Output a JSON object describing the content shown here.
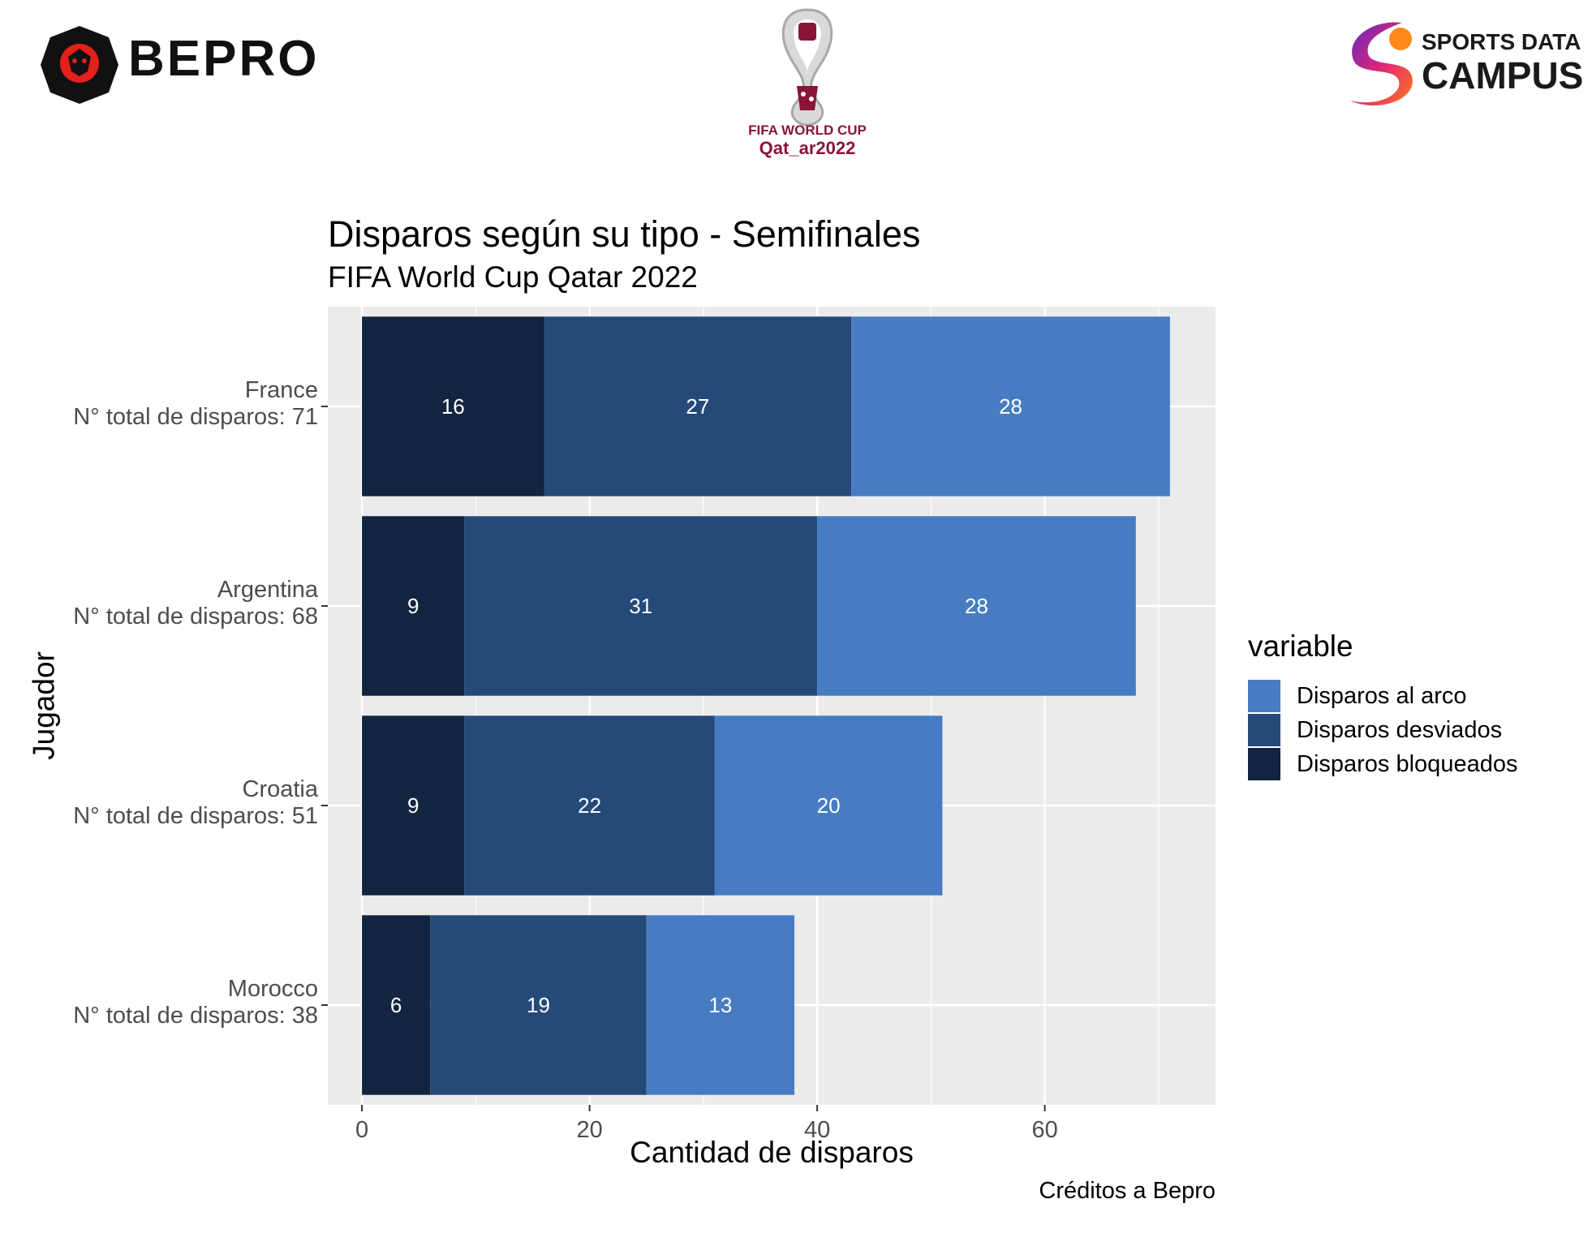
{
  "branding": {
    "left_logo_text": "BEPRO",
    "center_logo_line1": "FIFA WORLD CUP",
    "center_logo_line2": "Qat_ar2022",
    "right_logo_line1": "SPORTS DATA",
    "right_logo_line2": "CAMPUS"
  },
  "colors": {
    "panel_bg": "#ebebeb",
    "grid": "#ffffff",
    "al_arco": "#477cc2",
    "desviados": "#254a79",
    "bloqueados": "#12243f",
    "label_text": "#ffffff"
  },
  "chart_data": {
    "type": "bar",
    "orientation": "horizontal",
    "stacked": true,
    "title": "Disparos según su tipo - Semifinales",
    "subtitle": "FIFA World Cup Qatar 2022",
    "xlabel": "Cantidad de disparos",
    "ylabel": "Jugador",
    "caption": "Créditos a Bepro",
    "xlim": [
      -3,
      75
    ],
    "xticks": [
      0,
      20,
      40,
      60
    ],
    "grid": true,
    "legend_title": "variable",
    "legend_position": "right",
    "categories": [
      {
        "name": "France",
        "total_label": "N° total de disparos: 71"
      },
      {
        "name": "Argentina",
        "total_label": "N° total de disparos: 68"
      },
      {
        "name": "Croatia",
        "total_label": "N° total de disparos: 51"
      },
      {
        "name": "Morocco",
        "total_label": "N° total de disparos: 38"
      }
    ],
    "series": [
      {
        "name": "Disparos bloqueados",
        "color_key": "bloqueados",
        "values": [
          16,
          9,
          9,
          6
        ]
      },
      {
        "name": "Disparos desviados",
        "color_key": "desviados",
        "values": [
          27,
          31,
          22,
          19
        ]
      },
      {
        "name": "Disparos al arco",
        "color_key": "al_arco",
        "values": [
          28,
          28,
          20,
          13
        ]
      }
    ],
    "legend_order": [
      "Disparos al arco",
      "Disparos desviados",
      "Disparos bloqueados"
    ]
  }
}
